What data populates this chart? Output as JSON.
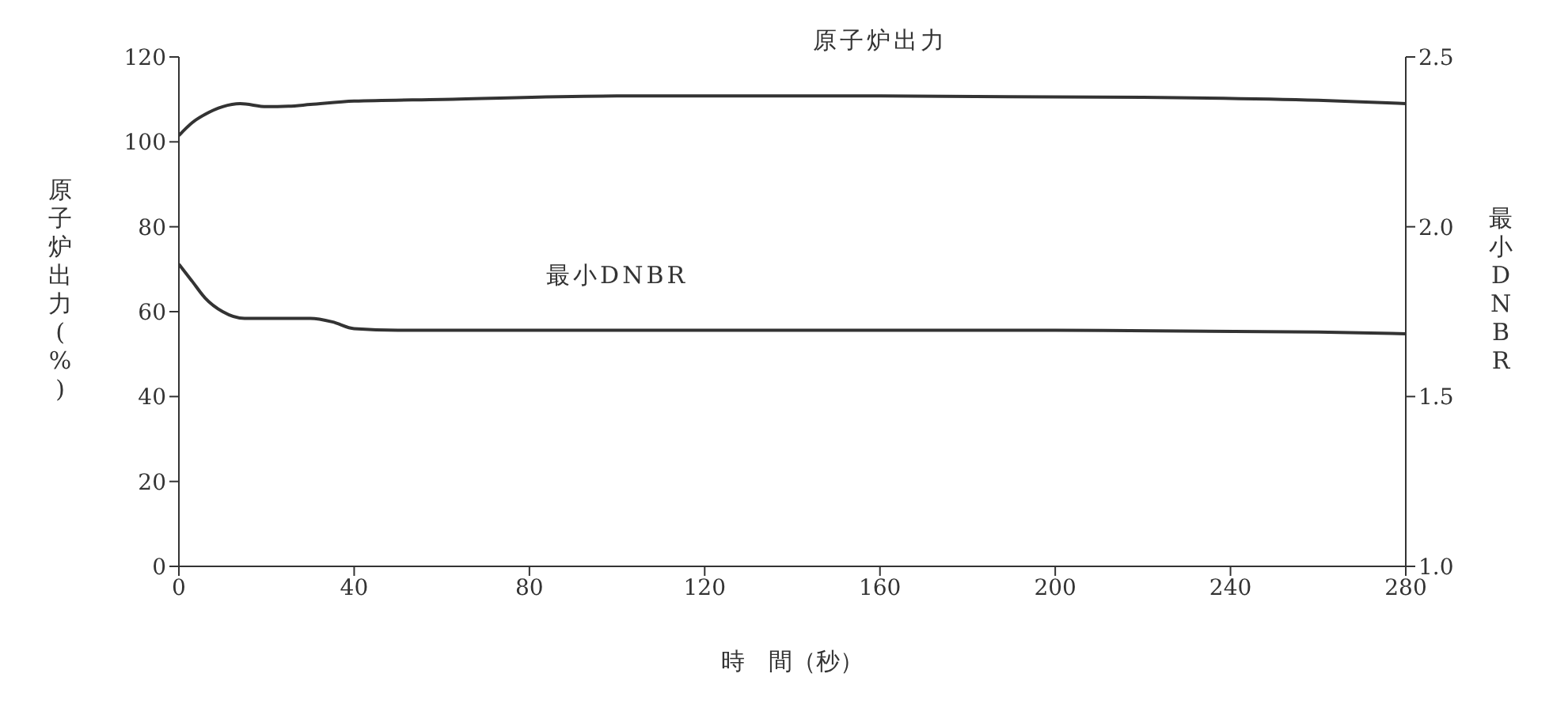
{
  "chart_data": {
    "type": "line",
    "xlabel": "時　間（秒）",
    "ylabel": "原子炉出力(%)",
    "y2label": "最小DNBR",
    "xlim": [
      0,
      280
    ],
    "xticks": [
      0,
      40,
      80,
      120,
      160,
      200,
      240,
      280
    ],
    "ylim": [
      0,
      120
    ],
    "yticks": [
      0,
      20,
      40,
      60,
      80,
      100,
      120
    ],
    "y2lim": [
      1,
      2.5
    ],
    "y2ticks": [
      {
        "value": 1,
        "label": "1.0"
      },
      1.5,
      {
        "value": 2,
        "label": "2.0"
      },
      2.5
    ],
    "marker": "none",
    "line_style": "solid",
    "series": [
      {
        "name": "原子炉出力",
        "color": "#333333",
        "x": [
          0,
          3,
          6,
          10,
          14,
          20,
          25,
          30,
          40,
          60,
          100,
          160,
          220,
          260,
          280
        ],
        "values": [
          101.5,
          104.5,
          106.5,
          108.3,
          109,
          108.3,
          108.4,
          108.8,
          109.6,
          110,
          110.8,
          110.8,
          110.5,
          109.8,
          109
        ]
      },
      {
        "name": "最小DNBR",
        "color": "#333333",
        "axis": "y2",
        "x": [
          0,
          3,
          6,
          10,
          15,
          20,
          30,
          35,
          40,
          50,
          100,
          200,
          260,
          280
        ],
        "values": [
          1.89,
          1.84,
          1.79,
          1.75,
          1.73,
          1.73,
          1.73,
          1.72,
          1.7,
          1.695,
          1.695,
          1.695,
          1.69,
          1.685
        ]
      }
    ]
  }
}
